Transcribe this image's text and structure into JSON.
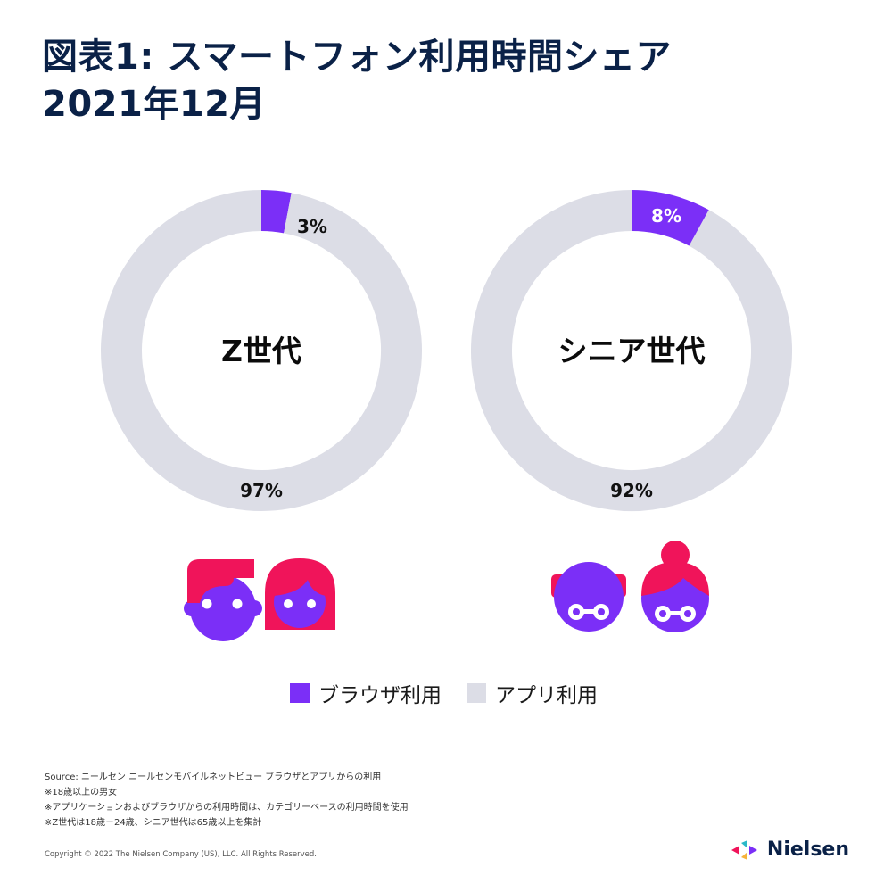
{
  "title_lines": [
    "図表1: スマートフォン利用時間シェア",
    "2021年12月"
  ],
  "chart_data": {
    "type": "pie",
    "charts": [
      {
        "center_label": "Z世代",
        "slices": [
          {
            "name": "ブラウザ利用",
            "value": 3,
            "label": "3%"
          },
          {
            "name": "アプリ利用",
            "value": 97,
            "label": "97%"
          }
        ]
      },
      {
        "center_label": "シニア世代",
        "slices": [
          {
            "name": "ブラウザ利用",
            "value": 8,
            "label": "8%"
          },
          {
            "name": "アプリ利用",
            "value": 92,
            "label": "92%"
          }
        ]
      }
    ],
    "legend": [
      {
        "name": "ブラウザ利用",
        "color": "#7b2ff7"
      },
      {
        "name": "アプリ利用",
        "color": "#dcdde6"
      }
    ],
    "colors": {
      "browser": "#7b2ff7",
      "app": "#dcdde6",
      "accent": "#f0145a"
    }
  },
  "notes": [
    "Source: ニールセン ニールセンモバイルネットビュー ブラウザとアプリからの利用",
    "※18歳以上の男女",
    "※アプリケーションおよびブラウザからの利用時間は、カテゴリーベースの利用時間を使用",
    "※Z世代は18歳－24歳、シニア世代は65歳以上を集計"
  ],
  "copyright": "Copyright © 2022 The Nielsen Company (US), LLC. All Rights Reserved.",
  "brand": "Nielsen",
  "icons": [
    "young-man-icon",
    "young-woman-icon",
    "old-man-icon",
    "old-woman-icon"
  ]
}
